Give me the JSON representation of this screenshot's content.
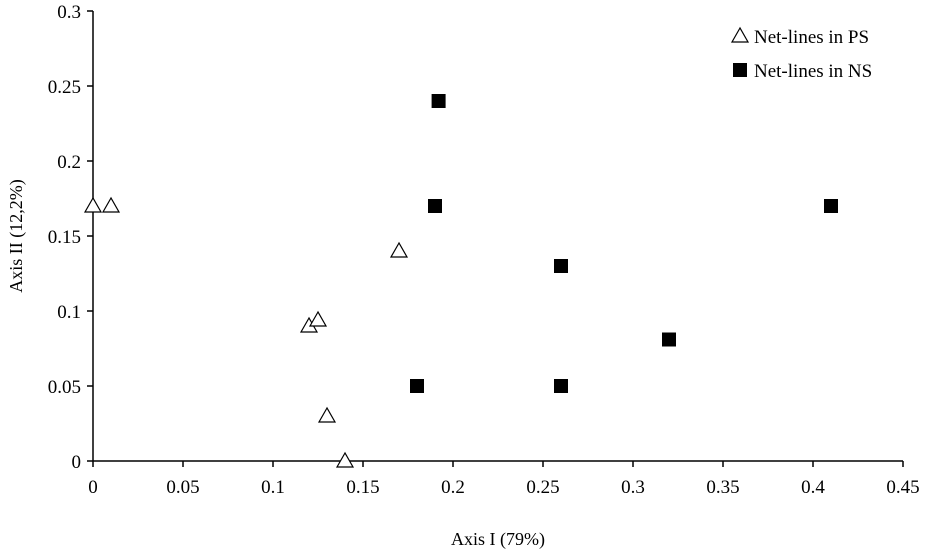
{
  "chart_data": {
    "type": "scatter",
    "title": "",
    "xlabel": "Axis I (79%)",
    "ylabel": "Axis II (12,2%)",
    "xlim": [
      0,
      0.45
    ],
    "ylim": [
      0,
      0.3
    ],
    "x_ticks": [
      "0",
      "0.05",
      "0.1",
      "0.15",
      "0.2",
      "0.25",
      "0.3",
      "0.35",
      "0.4",
      "0.45"
    ],
    "y_ticks": [
      "0",
      "0.05",
      "0.1",
      "0.15",
      "0.2",
      "0.25",
      "0.3"
    ],
    "grid": false,
    "legend_position": "top-right",
    "series": [
      {
        "name": "Net-lines in PS",
        "marker": "open-triangle",
        "color": "#000000",
        "points": [
          {
            "x": 0.0,
            "y": 0.17
          },
          {
            "x": 0.01,
            "y": 0.17
          },
          {
            "x": 0.12,
            "y": 0.09
          },
          {
            "x": 0.125,
            "y": 0.094
          },
          {
            "x": 0.13,
            "y": 0.03
          },
          {
            "x": 0.14,
            "y": 0.0
          },
          {
            "x": 0.17,
            "y": 0.14
          }
        ]
      },
      {
        "name": "Net-lines in NS",
        "marker": "filled-square",
        "color": "#000000",
        "points": [
          {
            "x": 0.18,
            "y": 0.05
          },
          {
            "x": 0.19,
            "y": 0.17
          },
          {
            "x": 0.192,
            "y": 0.24
          },
          {
            "x": 0.26,
            "y": 0.13
          },
          {
            "x": 0.26,
            "y": 0.05
          },
          {
            "x": 0.32,
            "y": 0.081
          },
          {
            "x": 0.41,
            "y": 0.17
          }
        ]
      }
    ]
  }
}
